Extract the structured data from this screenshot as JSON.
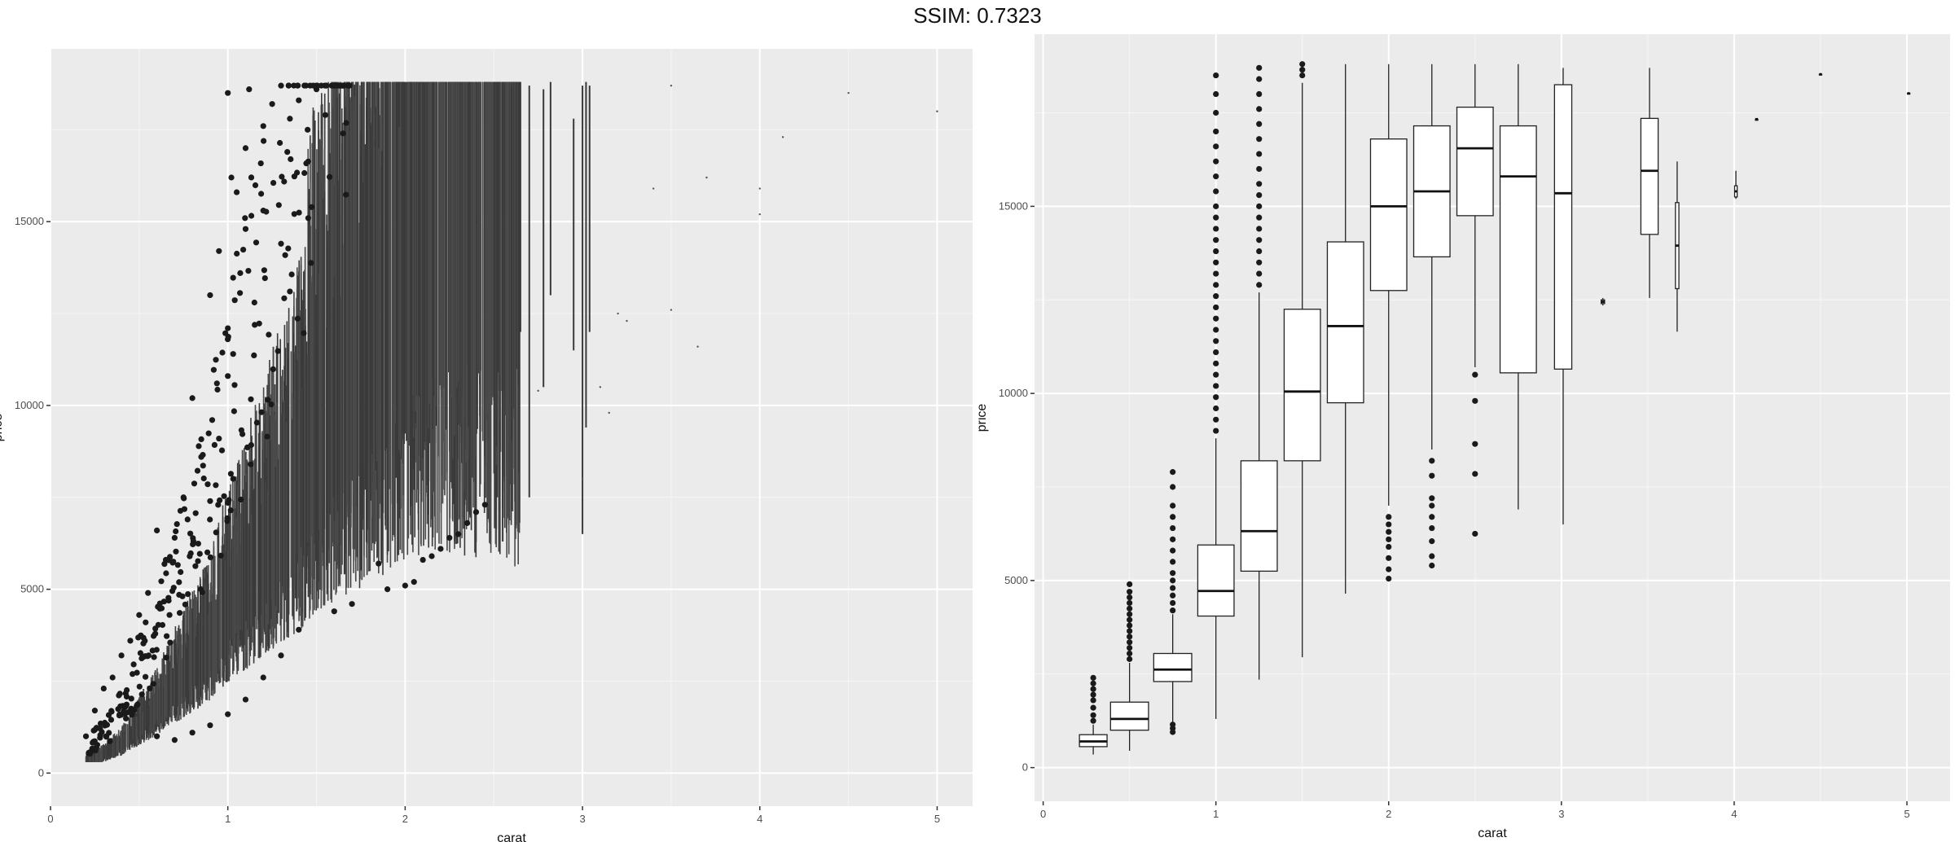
{
  "title": "SSIM: 0.7323",
  "colors": {
    "panel_bg": "#ebebeb",
    "grid_major": "#ffffff",
    "data_dark": "#1a1a1a",
    "box_fill": "#ffffff"
  },
  "chart_data": [
    {
      "type": "scatter",
      "xlabel": "carat",
      "ylabel": "price",
      "xlim": [
        0,
        5.2
      ],
      "ylim": [
        -900,
        19700
      ],
      "x_ticks": [
        0,
        1,
        2,
        3,
        4,
        5
      ],
      "y_ticks": [
        0,
        5000,
        10000,
        15000
      ],
      "x_tick_labels": [
        "0",
        "1",
        "2",
        "3",
        "4",
        "5"
      ],
      "y_tick_labels": [
        "0",
        "5000",
        "10000",
        "15000"
      ],
      "grid": true,
      "trend": [
        [
          0.2,
          330
        ],
        [
          0.3,
          500
        ],
        [
          0.4,
          800
        ],
        [
          0.5,
          1300
        ],
        [
          0.6,
          1800
        ],
        [
          0.7,
          2400
        ],
        [
          0.8,
          3000
        ],
        [
          0.9,
          3600
        ],
        [
          1.0,
          4600
        ],
        [
          1.1,
          5400
        ],
        [
          1.2,
          6200
        ],
        [
          1.3,
          7200
        ],
        [
          1.4,
          8000
        ],
        [
          1.5,
          9200
        ],
        [
          1.7,
          11000
        ],
        [
          1.9,
          12500
        ],
        [
          2.0,
          14000
        ],
        [
          2.2,
          15300
        ],
        [
          2.5,
          15900
        ]
      ],
      "sparse_points": [
        [
          3.4,
          15900
        ],
        [
          3.5,
          18700
        ],
        [
          3.7,
          16200
        ],
        [
          3.65,
          11600
        ],
        [
          3.5,
          12600
        ],
        [
          4.0,
          15900
        ],
        [
          4.0,
          15200
        ],
        [
          4.13,
          17300
        ],
        [
          4.5,
          18500
        ],
        [
          5.0,
          18000
        ],
        [
          3.2,
          12500
        ],
        [
          3.25,
          12300
        ],
        [
          3.1,
          10500
        ],
        [
          3.15,
          9800
        ],
        [
          3.0,
          8000
        ],
        [
          2.75,
          10400
        ]
      ],
      "outliers_high": [
        [
          1.0,
          18500
        ],
        [
          1.02,
          16200
        ],
        [
          1.05,
          15800
        ],
        [
          1.1,
          17000
        ],
        [
          1.12,
          18600
        ],
        [
          1.2,
          17600
        ],
        [
          1.25,
          18200
        ],
        [
          1.3,
          18700
        ],
        [
          1.35,
          17800
        ],
        [
          1.4,
          18300
        ],
        [
          1.45,
          17500
        ],
        [
          1.5,
          18600
        ],
        [
          1.55,
          17900
        ],
        [
          1.6,
          18700
        ],
        [
          1.65,
          17400
        ],
        [
          0.9,
          13000
        ],
        [
          0.95,
          14200
        ],
        [
          1.0,
          12100
        ],
        [
          1.03,
          11400
        ],
        [
          1.07,
          13600
        ],
        [
          1.1,
          14800
        ],
        [
          1.15,
          12800
        ],
        [
          1.2,
          15300
        ],
        [
          1.3,
          14400
        ],
        [
          1.35,
          13100
        ],
        [
          0.8,
          10200
        ],
        [
          0.85,
          8600
        ],
        [
          0.9,
          7400
        ],
        [
          0.95,
          9100
        ],
        [
          1.0,
          10800
        ],
        [
          0.7,
          6400
        ],
        [
          0.75,
          7500
        ],
        [
          0.6,
          6600
        ],
        [
          0.65,
          5800
        ],
        [
          0.55,
          4900
        ],
        [
          0.5,
          4300
        ],
        [
          0.45,
          3600
        ],
        [
          0.4,
          3200
        ],
        [
          0.35,
          2600
        ],
        [
          0.3,
          2300
        ],
        [
          0.25,
          1700
        ],
        [
          0.2,
          1000
        ]
      ],
      "outliers_low": [
        [
          2.0,
          5100
        ],
        [
          2.05,
          5200
        ],
        [
          2.1,
          5800
        ],
        [
          2.15,
          5900
        ],
        [
          2.2,
          6100
        ],
        [
          2.25,
          6400
        ],
        [
          2.3,
          6500
        ],
        [
          2.35,
          6800
        ],
        [
          2.4,
          7100
        ],
        [
          2.45,
          7300
        ],
        [
          1.9,
          5000
        ],
        [
          1.85,
          5700
        ],
        [
          1.7,
          4600
        ],
        [
          1.6,
          4400
        ],
        [
          1.4,
          3900
        ],
        [
          1.3,
          3200
        ],
        [
          1.2,
          2600
        ],
        [
          1.1,
          2000
        ],
        [
          1.0,
          1600
        ],
        [
          0.9,
          1300
        ],
        [
          0.8,
          1100
        ],
        [
          0.7,
          900
        ],
        [
          0.6,
          1000
        ]
      ]
    },
    {
      "type": "boxplot",
      "xlabel": "carat",
      "ylabel": "price",
      "xlim": [
        -0.05,
        5.25
      ],
      "ylim": [
        -900,
        19600
      ],
      "x_ticks": [
        0,
        1,
        2,
        3,
        4,
        5
      ],
      "y_ticks": [
        0,
        5000,
        10000,
        15000
      ],
      "x_tick_labels": [
        "0",
        "1",
        "2",
        "3",
        "4",
        "5"
      ],
      "y_tick_labels": [
        "0",
        "5000",
        "10000",
        "15000"
      ],
      "grid": true,
      "boxes": [
        {
          "x": 0.29,
          "w": 0.16,
          "lo": 350,
          "q1": 560,
          "med": 700,
          "q3": 880,
          "hi": 1150,
          "outliers": [
            1250,
            1400,
            1600,
            1800,
            1950,
            2100,
            2250,
            2400
          ]
        },
        {
          "x": 0.5,
          "w": 0.22,
          "lo": 450,
          "q1": 1000,
          "med": 1300,
          "q3": 1750,
          "hi": 2800,
          "outliers": [
            2900,
            3050,
            3200,
            3350,
            3500,
            3650,
            3800,
            3950,
            4100,
            4250,
            4400,
            4550,
            4700,
            4900
          ]
        },
        {
          "x": 0.75,
          "w": 0.22,
          "lo": 1100,
          "q1": 2300,
          "med": 2620,
          "q3": 3050,
          "hi": 4100,
          "outliers": [
            950,
            1050,
            1150,
            4200,
            4400,
            4600,
            4800,
            5000,
            5200,
            5500,
            5800,
            6100,
            6400,
            6700,
            7000,
            7500,
            7900
          ]
        },
        {
          "x": 1.0,
          "w": 0.21,
          "lo": 1300,
          "q1": 4050,
          "med": 4720,
          "q3": 5950,
          "hi": 8800,
          "outliers": [
            9000,
            9300,
            9600,
            9900,
            10200,
            10500,
            10800,
            11100,
            11400,
            11700,
            12000,
            12300,
            12600,
            12900,
            13200,
            13500,
            13800,
            14100,
            14400,
            14700,
            15000,
            15400,
            15800,
            16200,
            16600,
            17000,
            17500,
            18000,
            18500
          ]
        },
        {
          "x": 1.25,
          "w": 0.21,
          "lo": 2350,
          "q1": 5250,
          "med": 6320,
          "q3": 8200,
          "hi": 12700,
          "outliers": [
            12900,
            13200,
            13500,
            13800,
            14100,
            14400,
            14700,
            15000,
            15300,
            15600,
            16000,
            16400,
            16800,
            17200,
            17600,
            18000,
            18400,
            18700
          ]
        },
        {
          "x": 1.5,
          "w": 0.21,
          "lo": 2950,
          "q1": 8200,
          "med": 10050,
          "q3": 12250,
          "hi": 18300,
          "outliers": [
            18500,
            18650,
            18800
          ]
        },
        {
          "x": 1.75,
          "w": 0.21,
          "lo": 4650,
          "q1": 9750,
          "med": 11800,
          "q3": 14050,
          "hi": 18800,
          "outliers": []
        },
        {
          "x": 2.0,
          "w": 0.21,
          "lo": 7000,
          "q1": 12750,
          "med": 15000,
          "q3": 16800,
          "hi": 18800,
          "outliers": [
            5050,
            5300,
            5600,
            5900,
            6100,
            6300,
            6500,
            6700
          ]
        },
        {
          "x": 2.25,
          "w": 0.21,
          "lo": 8500,
          "q1": 13650,
          "med": 15400,
          "q3": 17150,
          "hi": 18800,
          "outliers": [
            5400,
            5650,
            6050,
            6400,
            6700,
            7000,
            7200,
            7800,
            8200
          ]
        },
        {
          "x": 2.5,
          "w": 0.21,
          "lo": 10700,
          "q1": 14750,
          "med": 16550,
          "q3": 17650,
          "hi": 18800,
          "outliers": [
            6250,
            7850,
            8650,
            9800,
            10500
          ]
        },
        {
          "x": 2.75,
          "w": 0.21,
          "lo": 6900,
          "q1": 10550,
          "med": 15800,
          "q3": 17150,
          "hi": 18800,
          "outliers": []
        },
        {
          "x": 3.01,
          "w": 0.1,
          "lo": 6500,
          "q1": 10650,
          "med": 15350,
          "q3": 18250,
          "hi": 18700,
          "outliers": []
        },
        {
          "x": 3.24,
          "w": 0.02,
          "lo": 12350,
          "q1": 12400,
          "med": 12450,
          "q3": 12500,
          "hi": 12550,
          "outliers": []
        },
        {
          "x": 3.51,
          "w": 0.1,
          "lo": 12550,
          "q1": 14250,
          "med": 15950,
          "q3": 17350,
          "hi": 18700,
          "outliers": []
        },
        {
          "x": 3.67,
          "w": 0.02,
          "lo": 11650,
          "q1": 12800,
          "med": 13950,
          "q3": 15100,
          "hi": 16200,
          "outliers": []
        },
        {
          "x": 4.01,
          "w": 0.015,
          "lo": 15200,
          "q1": 15250,
          "med": 15400,
          "q3": 15550,
          "hi": 15950,
          "outliers": []
        },
        {
          "x": 4.13,
          "w": 0.005,
          "lo": 17300,
          "q1": 17300,
          "med": 17330,
          "q3": 17330,
          "hi": 17330,
          "outliers": []
        },
        {
          "x": 4.5,
          "w": 0.005,
          "lo": 18530,
          "q1": 18530,
          "med": 18530,
          "q3": 18530,
          "hi": 18530,
          "outliers": []
        },
        {
          "x": 5.01,
          "w": 0.005,
          "lo": 18020,
          "q1": 18020,
          "med": 18020,
          "q3": 18020,
          "hi": 18020,
          "outliers": []
        }
      ]
    }
  ]
}
